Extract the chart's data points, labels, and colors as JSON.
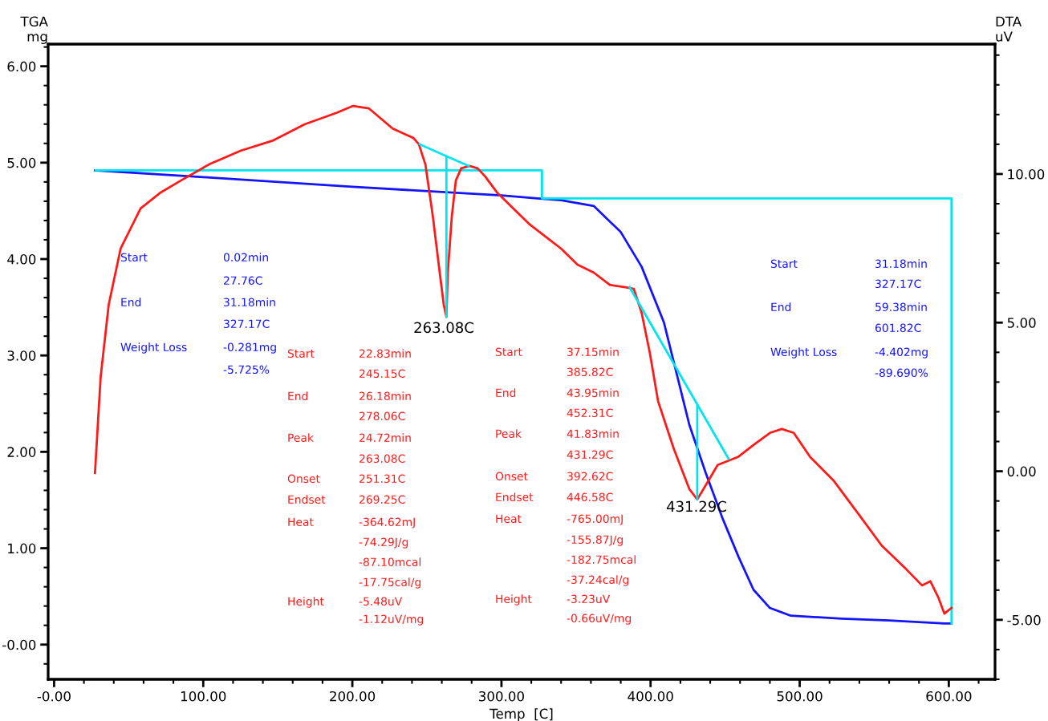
{
  "chart_data": {
    "type": "line",
    "xlabel": "Temp  [C]",
    "ylabel": "TGA\nmg",
    "y2label": "DTA\nuV",
    "xlim": [
      -4,
      631
    ],
    "xticks": [
      {
        "value": 0,
        "label": "-0.00"
      },
      {
        "value": 100,
        "label": "100.00"
      },
      {
        "value": 200,
        "label": "200.00"
      },
      {
        "value": 300,
        "label": "300.00"
      },
      {
        "value": 400,
        "label": "400.00"
      },
      {
        "value": 500,
        "label": "500.00"
      },
      {
        "value": 600,
        "label": "600.00"
      }
    ],
    "ylim": [
      -0.36,
      6.23
    ],
    "yticks": [
      {
        "value": 0,
        "label": "-0.00"
      },
      {
        "value": 1,
        "label": "1.00"
      },
      {
        "value": 2,
        "label": "2.00"
      },
      {
        "value": 3,
        "label": "3.00"
      },
      {
        "value": 4,
        "label": "4.00"
      },
      {
        "value": 5,
        "label": "5.00"
      },
      {
        "value": 6,
        "label": "6.00"
      }
    ],
    "y2lim": [
      -7.0,
      14.37
    ],
    "y2ticks": [
      {
        "value": -5,
        "label": "-5.00"
      },
      {
        "value": 0,
        "label": "0.00"
      },
      {
        "value": 5,
        "label": "5.00"
      },
      {
        "value": 10,
        "label": "10.00"
      }
    ],
    "grid": false,
    "legend": false,
    "series": [
      {
        "color": "#00e5ee",
        "axis": "y2",
        "x": [
          245.15,
          263.08,
          263.08,
          263.08,
          278.06
        ],
        "values": [
          11.0,
          10.6,
          5.19,
          10.6,
          10.27
        ]
      },
      {
        "color": "#00e5ee",
        "axis": "y2",
        "x": [
          385.82,
          431.29,
          431.29,
          431.29,
          452.31
        ],
        "values": [
          6.2,
          2.25,
          -0.95,
          2.25,
          0.42
        ]
      },
      {
        "color": "#00e5ee",
        "x": [
          27.76,
          327.17,
          327.17,
          601.82,
          601.82
        ],
        "values": [
          4.92,
          4.92,
          4.63,
          4.63,
          0.22
        ]
      },
      {
        "color": "#ff1a1a",
        "axis": "y2",
        "x": [
          27.4,
          31.2,
          36.6,
          44.6,
          58,
          71.5,
          85,
          103.8,
          125,
          147,
          168,
          190,
          200.5,
          211,
          227,
          241,
          244.6,
          249,
          254,
          258.6,
          261.3,
          263.08,
          264,
          266.7,
          269.4,
          273,
          278.5,
          284,
          289,
          297,
          308,
          319,
          329.6,
          340,
          351,
          362,
          372.6,
          383,
          388.7,
          394,
          399.5,
          405,
          415.6,
          426,
          431.29,
          437,
          445,
          458.6,
          469,
          480,
          488,
          496,
          507,
          523,
          539,
          555,
          571.5,
          582,
          587.6,
          593,
          597,
          601.82
        ],
        "values": [
          -0.06,
          3.17,
          5.6,
          7.49,
          8.84,
          9.38,
          9.78,
          10.32,
          10.78,
          11.13,
          11.67,
          12.07,
          12.29,
          12.21,
          11.53,
          11.21,
          11.0,
          10.32,
          8.57,
          6.68,
          5.6,
          5.19,
          6.68,
          8.57,
          9.78,
          10.19,
          10.27,
          10.19,
          9.92,
          9.38,
          8.84,
          8.3,
          7.89,
          7.49,
          6.95,
          6.68,
          6.27,
          6.19,
          6.14,
          5.33,
          3.98,
          2.36,
          0.75,
          -0.6,
          -0.95,
          -0.47,
          0.21,
          0.48,
          0.88,
          1.29,
          1.42,
          1.29,
          0.48,
          -0.33,
          -1.41,
          -2.5,
          -3.3,
          -3.84,
          -3.7,
          -4.25,
          -4.79,
          -4.6
        ]
      },
      {
        "color": "#1414ff",
        "x": [
          27.4,
          100,
          200,
          300,
          324,
          340,
          362,
          380,
          394,
          409,
          426,
          437,
          448,
          459,
          469,
          480,
          494,
          528,
          560,
          597,
          601.82
        ],
        "values": [
          4.92,
          4.85,
          4.75,
          4.66,
          4.63,
          4.61,
          4.55,
          4.28,
          3.92,
          3.34,
          2.28,
          1.78,
          1.32,
          0.91,
          0.57,
          0.38,
          0.3,
          0.27,
          0.25,
          0.22,
          0.22
        ]
      }
    ],
    "annotations": [
      "Start",
      "0.02min",
      "27.76C",
      "End",
      "31.18min",
      "327.17C",
      "Weight Loss",
      "-0.281mg",
      "-5.725%",
      "Start",
      "22.83min",
      "245.15C",
      "End",
      "26.18min",
      "278.06C",
      "Peak",
      "24.72min",
      "263.08C",
      "Onset",
      "251.31C",
      "Endset",
      "269.25C",
      "Heat",
      "-364.62mJ",
      "-74.29J/g",
      "-87.10mcal",
      "-17.75cal/g",
      "Height",
      "-5.48uV",
      "-1.12uV/mg",
      "Start",
      "37.15min",
      "385.82C",
      "End",
      "43.95min",
      "452.31C",
      "Peak",
      "41.83min",
      "431.29C",
      "Onset",
      "392.62C",
      "Endset",
      "446.58C",
      "Heat",
      "-765.00mJ",
      "-155.87J/g",
      "-182.75mcal",
      "-37.24cal/g",
      "Height",
      "-3.23uV",
      "-0.66uV/mg",
      "Start",
      "31.18min",
      "327.17C",
      "End",
      "59.38min",
      "601.82C",
      "Weight Loss",
      "-4.402mg",
      "-89.690%",
      "263.08C",
      "431.29C"
    ]
  }
}
